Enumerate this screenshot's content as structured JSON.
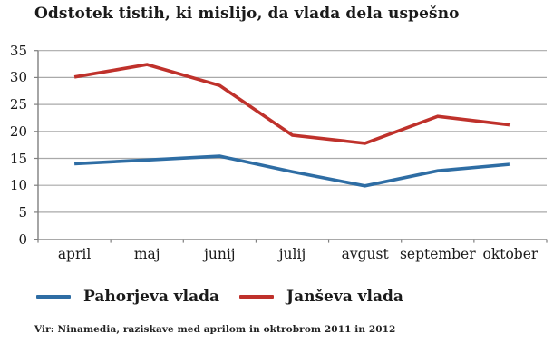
{
  "page": {
    "title": "Odstotek tistih, ki mislijo, da vlada dela uspešno",
    "source": "Vir: Ninamedia, raziskave med aprilom in oktrobrom 2011 in 2012"
  },
  "chart_data": {
    "type": "line",
    "title": "Odstotek tistih, ki mislijo, da vlada dela uspešno",
    "categories": [
      "april",
      "maj",
      "junij",
      "julij",
      "avgust",
      "september",
      "oktober"
    ],
    "series": [
      {
        "name": "Pahorjeva vlada",
        "color": "#2e6da4",
        "values": [
          14.0,
          14.7,
          15.4,
          12.5,
          9.9,
          12.7,
          13.9
        ]
      },
      {
        "name": "Janševa vlada",
        "color": "#bf312b",
        "values": [
          30.1,
          32.4,
          28.5,
          19.3,
          17.8,
          22.8,
          21.2
        ]
      }
    ],
    "xlabel": "",
    "ylabel": "",
    "ylim": [
      0,
      35
    ],
    "yticks": [
      0,
      5,
      10,
      15,
      20,
      25,
      30,
      35
    ],
    "grid": true,
    "legend_position": "bottom",
    "annotations": []
  },
  "colors": {
    "gridline": "#a9a9a9",
    "axis": "#7f7f7f",
    "text": "#1a1a1a"
  }
}
